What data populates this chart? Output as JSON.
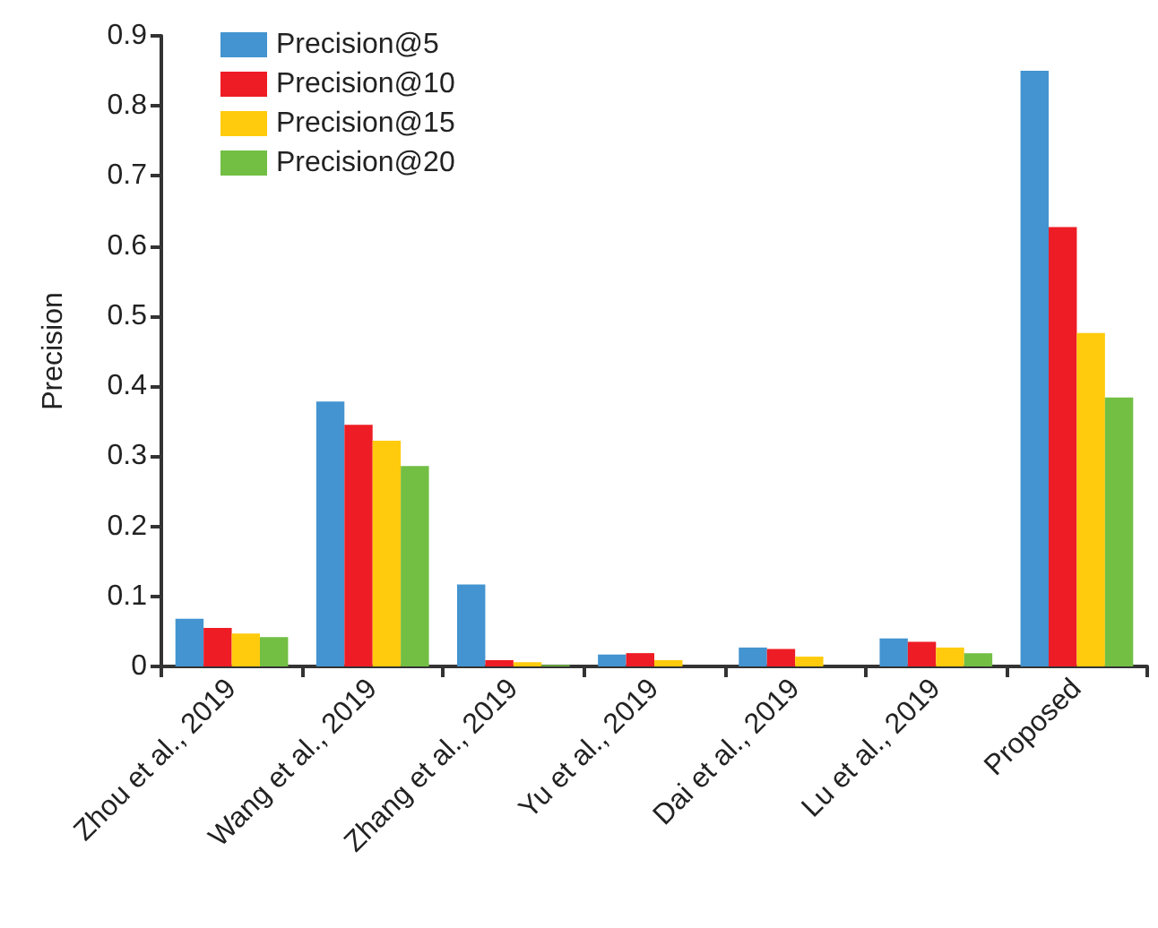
{
  "chart_data": {
    "type": "bar",
    "ylabel": "Precision",
    "categories": [
      "Zhou et al., 2019",
      "Wang et al., 2019",
      "Zhang et al., 2019",
      "Yu et al., 2019",
      "Dai et al., 2019",
      "Lu et al., 2019",
      "Proposed"
    ],
    "series": [
      {
        "name": "Precision@5",
        "color": "#4394d0",
        "values": [
          0.068,
          0.378,
          0.117,
          0.017,
          0.027,
          0.04,
          0.85
        ]
      },
      {
        "name": "Precision@10",
        "color": "#ee1c25",
        "values": [
          0.055,
          0.345,
          0.009,
          0.019,
          0.025,
          0.035,
          0.627
        ]
      },
      {
        "name": "Precision@15",
        "color": "#ffcb0c",
        "values": [
          0.047,
          0.322,
          0.006,
          0.009,
          0.014,
          0.027,
          0.476
        ]
      },
      {
        "name": "Precision@20",
        "color": "#72bf44",
        "values": [
          0.042,
          0.286,
          0.002,
          0,
          0,
          0.019,
          0.384
        ]
      }
    ],
    "ylim": [
      0,
      0.9
    ],
    "yticks": [
      0,
      0.1,
      0.2,
      0.3,
      0.4,
      0.5,
      0.6,
      0.7,
      0.8,
      0.9
    ],
    "grid": false,
    "legend": "top left"
  }
}
